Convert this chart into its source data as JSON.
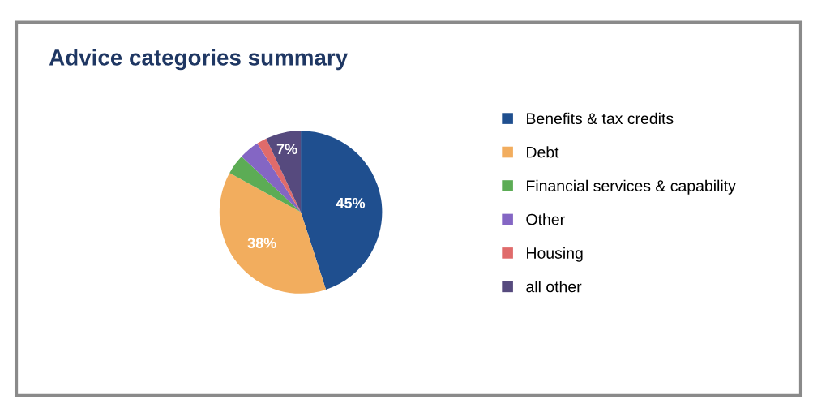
{
  "chart_data": {
    "type": "pie",
    "title": "Advice categories summary",
    "categories": [
      "Benefits & tax credits",
      "Debt",
      "Financial services & capability",
      "Other",
      "Housing",
      "all other"
    ],
    "values": [
      45,
      38,
      4,
      4,
      2,
      7
    ],
    "colors": [
      "#1f4f8f",
      "#f2ad5e",
      "#5cac55",
      "#8466c4",
      "#e06b6b",
      "#564a7e"
    ],
    "value_labels": [
      "45%",
      "38%",
      null,
      null,
      null,
      "7%"
    ],
    "legend": "right"
  }
}
